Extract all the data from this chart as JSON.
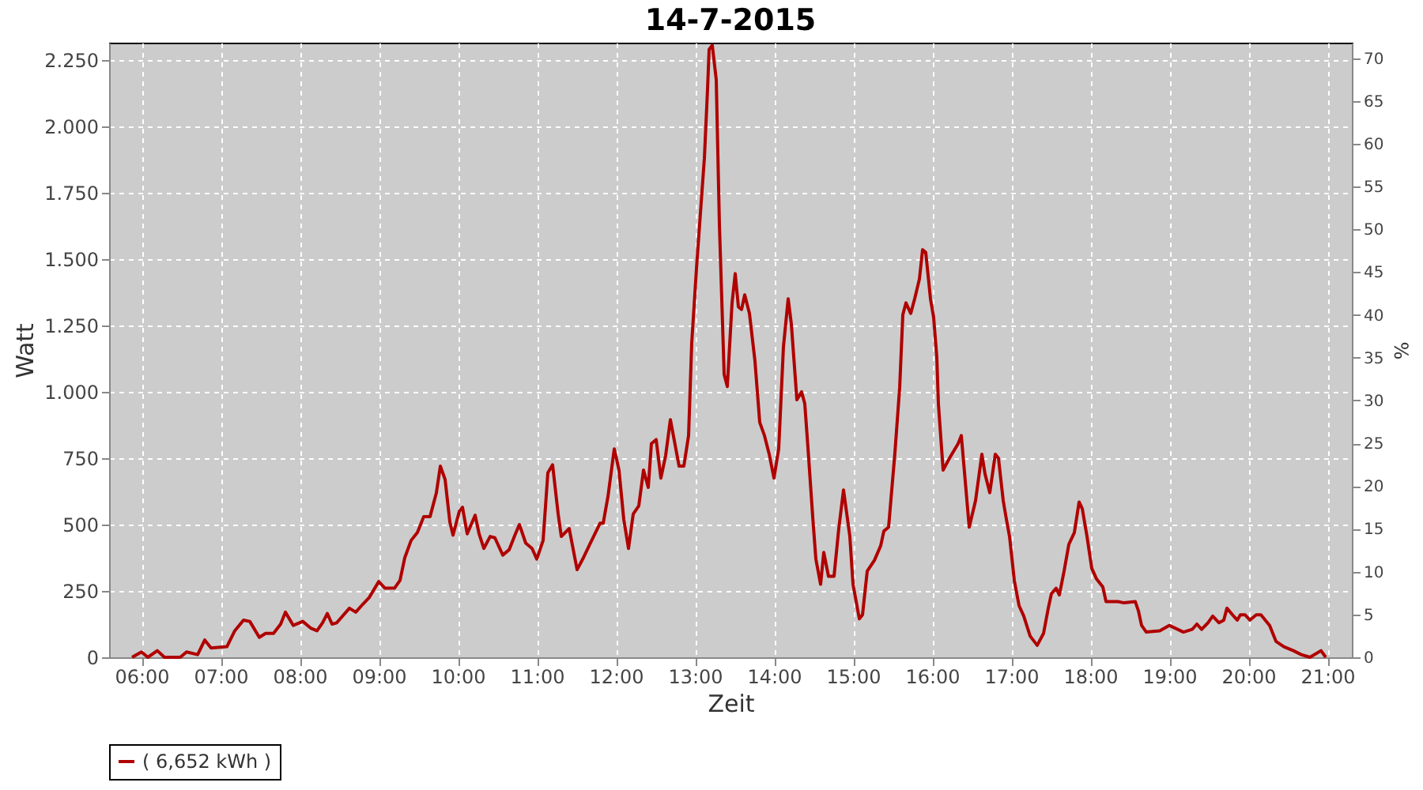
{
  "chart_data": {
    "type": "line",
    "title": "14-7-2015",
    "xlabel": "Zeit",
    "ylabel": "Watt",
    "y2label": "%",
    "xlim": [
      5.59,
      21.31
    ],
    "ylim": [
      0,
      2315
    ],
    "y2lim": [
      0,
      71.8
    ],
    "xticks": [
      {
        "value": 6,
        "label": "06:00"
      },
      {
        "value": 7,
        "label": "07:00"
      },
      {
        "value": 8,
        "label": "08:00"
      },
      {
        "value": 9,
        "label": "09:00"
      },
      {
        "value": 10,
        "label": "10:00"
      },
      {
        "value": 11,
        "label": "11:00"
      },
      {
        "value": 12,
        "label": "12:00"
      },
      {
        "value": 13,
        "label": "13:00"
      },
      {
        "value": 14,
        "label": "14:00"
      },
      {
        "value": 15,
        "label": "15:00"
      },
      {
        "value": 16,
        "label": "16:00"
      },
      {
        "value": 17,
        "label": "17:00"
      },
      {
        "value": 18,
        "label": "18:00"
      },
      {
        "value": 19,
        "label": "19:00"
      },
      {
        "value": 20,
        "label": "20:00"
      },
      {
        "value": 21,
        "label": "21:00"
      }
    ],
    "yticks": [
      0,
      250,
      500,
      750,
      {
        "value": 1000,
        "label": "1.000"
      },
      {
        "value": 1250,
        "label": "1.250"
      },
      {
        "value": 1500,
        "label": "1.500"
      },
      {
        "value": 1750,
        "label": "1.750"
      },
      {
        "value": 2000,
        "label": "2.000"
      },
      {
        "value": 2250,
        "label": "2.250"
      }
    ],
    "y2ticks": [
      0,
      5,
      10,
      15,
      20,
      25,
      30,
      35,
      40,
      45,
      50,
      55,
      60,
      65,
      70
    ],
    "grid": true,
    "legend": "bottom",
    "marker": "none",
    "line_style": "solid",
    "x": [
      5.88,
      6.0,
      6.08,
      6.2,
      6.29,
      6.49,
      6.57,
      6.71,
      6.8,
      6.88,
      7.08,
      7.18,
      7.29,
      7.37,
      7.49,
      7.57,
      7.67,
      7.76,
      7.82,
      7.92,
      8.04,
      8.14,
      8.22,
      8.29,
      8.35,
      8.41,
      8.47,
      8.63,
      8.71,
      8.8,
      8.88,
      9.0,
      9.08,
      9.2,
      9.27,
      9.33,
      9.41,
      9.49,
      9.57,
      9.65,
      9.73,
      9.78,
      9.84,
      9.9,
      9.94,
      10.02,
      10.06,
      10.12,
      10.22,
      10.27,
      10.33,
      10.41,
      10.47,
      10.57,
      10.65,
      10.73,
      10.78,
      10.86,
      10.94,
      11.0,
      11.08,
      11.14,
      11.2,
      11.27,
      11.31,
      11.41,
      11.51,
      11.59,
      11.67,
      11.8,
      11.84,
      11.9,
      11.98,
      12.04,
      12.1,
      12.16,
      12.22,
      12.29,
      12.35,
      12.41,
      12.45,
      12.51,
      12.57,
      12.63,
      12.69,
      12.8,
      12.86,
      12.92,
      12.96,
      13.02,
      13.08,
      13.12,
      13.16,
      13.18,
      13.22,
      13.27,
      13.31,
      13.37,
      13.41,
      13.47,
      13.51,
      13.55,
      13.59,
      13.63,
      13.69,
      13.76,
      13.82,
      13.88,
      13.94,
      14.0,
      14.06,
      14.12,
      14.18,
      14.22,
      14.29,
      14.35,
      14.39,
      14.43,
      14.49,
      14.53,
      14.59,
      14.63,
      14.69,
      14.76,
      14.82,
      14.88,
      14.96,
      15.0,
      15.08,
      15.12,
      15.18,
      15.27,
      15.35,
      15.39,
      15.45,
      15.53,
      15.59,
      15.63,
      15.67,
      15.73,
      15.78,
      15.84,
      15.88,
      15.92,
      15.98,
      16.02,
      16.06,
      16.08,
      16.14,
      16.22,
      16.33,
      16.37,
      16.47,
      16.55,
      16.63,
      16.67,
      16.73,
      16.8,
      16.84,
      16.9,
      16.94,
      16.98,
      17.04,
      17.1,
      17.16,
      17.24,
      17.33,
      17.41,
      17.47,
      17.51,
      17.57,
      17.61,
      17.67,
      17.73,
      17.8,
      17.86,
      17.9,
      17.96,
      18.02,
      18.08,
      18.16,
      18.2,
      18.29,
      18.35,
      18.43,
      18.57,
      18.61,
      18.65,
      18.71,
      18.88,
      19.0,
      19.18,
      19.29,
      19.35,
      19.41,
      19.49,
      19.55,
      19.63,
      19.69,
      19.73,
      19.8,
      19.86,
      19.9,
      19.96,
      20.02,
      20.1,
      20.16,
      20.27,
      20.35,
      20.45,
      20.57,
      20.67,
      20.78,
      20.92,
      20.98
    ],
    "series": [
      {
        "name": "( 6,652 kWh )",
        "color": "#b00000",
        "values": [
          0,
          20,
          0,
          25,
          0,
          0,
          20,
          10,
          65,
          35,
          40,
          100,
          140,
          135,
          75,
          90,
          90,
          125,
          170,
          120,
          135,
          110,
          100,
          130,
          165,
          125,
          130,
          185,
          170,
          200,
          225,
          285,
          260,
          260,
          290,
          375,
          440,
          470,
          530,
          530,
          620,
          720,
          670,
          510,
          460,
          550,
          565,
          465,
          535,
          465,
          410,
          455,
          450,
          385,
          405,
          465,
          500,
          430,
          410,
          370,
          440,
          695,
          725,
          540,
          455,
          485,
          330,
          375,
          425,
          505,
          505,
          605,
          785,
          705,
          520,
          410,
          540,
          570,
          705,
          640,
          805,
          820,
          675,
          760,
          895,
          720,
          720,
          835,
          1185,
          1465,
          1715,
          1880,
          2140,
          2290,
          2305,
          2175,
          1630,
          1065,
          1020,
          1335,
          1445,
          1320,
          1310,
          1365,
          1295,
          1115,
          885,
          835,
          765,
          675,
          785,
          1170,
          1350,
          1255,
          970,
          1000,
          955,
          790,
          530,
          370,
          275,
          395,
          305,
          305,
          485,
          630,
          455,
          275,
          145,
          160,
          325,
          365,
          420,
          475,
          490,
          770,
          1015,
          1290,
          1335,
          1295,
          1350,
          1425,
          1535,
          1525,
          1350,
          1280,
          1130,
          955,
          705,
          750,
          805,
          835,
          490,
          590,
          765,
          690,
          620,
          765,
          750,
          590,
          520,
          455,
          290,
          195,
          155,
          80,
          45,
          90,
          185,
          240,
          260,
          235,
          325,
          425,
          470,
          585,
          560,
          455,
          335,
          295,
          265,
          210,
          210,
          210,
          205,
          210,
          175,
          120,
          95,
          100,
          120,
          95,
          105,
          125,
          105,
          130,
          155,
          130,
          140,
          185,
          160,
          140,
          160,
          160,
          140,
          160,
          160,
          120,
          60,
          40,
          25,
          10,
          0,
          25,
          0
        ]
      }
    ]
  }
}
